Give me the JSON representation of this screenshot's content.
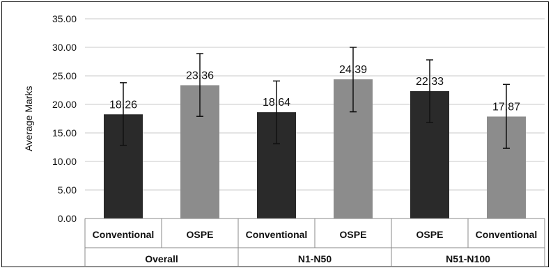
{
  "chart_data": {
    "type": "bar",
    "ylabel": "Average Marks",
    "ylim": [
      0,
      35
    ],
    "ytick_step": 5,
    "ytick_labels": [
      "0.00",
      "5.00",
      "10.00",
      "15.00",
      "20.00",
      "25.00",
      "30.00",
      "35.00"
    ],
    "grid": true,
    "legend": "none",
    "groups": [
      {
        "label": "Overall",
        "size": 2
      },
      {
        "label": "N1-N50",
        "size": 2
      },
      {
        "label": "N51-N100",
        "size": 2
      }
    ],
    "categories": [
      "Conventional",
      "OSPE",
      "Conventional",
      "OSPE",
      "OSPE",
      "Conventional"
    ],
    "values": [
      18.26,
      23.36,
      18.64,
      24.39,
      22.33,
      17.87
    ],
    "data_labels": [
      "18.26",
      "23.36",
      "18.64",
      "24.39",
      "22.33",
      "17.87"
    ],
    "error_low": [
      12.8,
      17.9,
      13.1,
      18.7,
      16.8,
      12.3
    ],
    "error_high": [
      23.8,
      28.9,
      24.1,
      30.0,
      27.8,
      23.5
    ],
    "bar_colors": [
      "#2a2a2a",
      "#8c8c8c",
      "#2a2a2a",
      "#8c8c8c",
      "#2a2a2a",
      "#8c8c8c"
    ],
    "grid_color": "#c8c8c8"
  }
}
